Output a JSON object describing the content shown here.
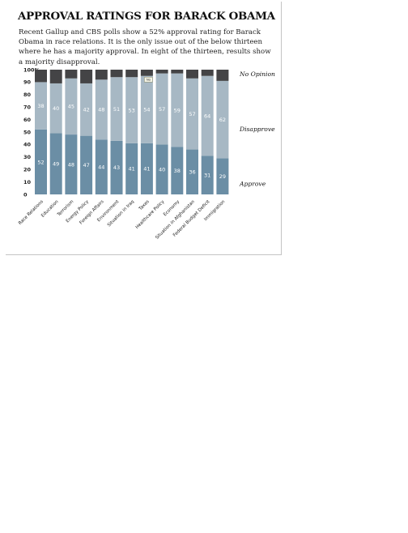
{
  "header": {
    "title": "APPROVAL RATINGS FOR BARACK OBAMA",
    "subtitle": "Recent Gallup and CBS polls show a 52% approval rating for Barack Obama in race relations. It is the only issue out of the below thirteen where he has a majority approval. In eight of the thirteen, results show a majority disapproval."
  },
  "chart_data": {
    "type": "bar",
    "stacked": true,
    "categories": [
      "Race Relations",
      "Education",
      "Terrorism",
      "Energy Policy",
      "Foreign Affairs",
      "Environment",
      "Situation in Iraq",
      "Taxes",
      "Healthcare Policy",
      "Economy",
      "Situation in Afghanistan",
      "Federal Budget Deficit",
      "Immigration"
    ],
    "series": [
      {
        "name": "Approve",
        "values": [
          52,
          49,
          48,
          47,
          44,
          43,
          41,
          41,
          40,
          38,
          36,
          31,
          29
        ]
      },
      {
        "name": "Disapprove",
        "values": [
          38,
          40,
          45,
          42,
          48,
          51,
          53,
          54,
          57,
          59,
          57,
          64,
          62
        ]
      },
      {
        "name": "No Opinion",
        "values": [
          10,
          11,
          7,
          11,
          8,
          6,
          6,
          5,
          3,
          3,
          7,
          5,
          9
        ]
      }
    ],
    "yticks": [
      "0",
      "10",
      "20",
      "30",
      "40",
      "50",
      "60",
      "70",
      "80",
      "90",
      "100%"
    ],
    "ylim": [
      0,
      100
    ],
    "xlabel": "",
    "ylabel": "",
    "annotation": {
      "text": "No",
      "category": "Taxes"
    },
    "colors": {
      "Approve": "#6b8ea5",
      "Disapprove": "#a7b8c4",
      "No Opinion": "#444446"
    }
  }
}
